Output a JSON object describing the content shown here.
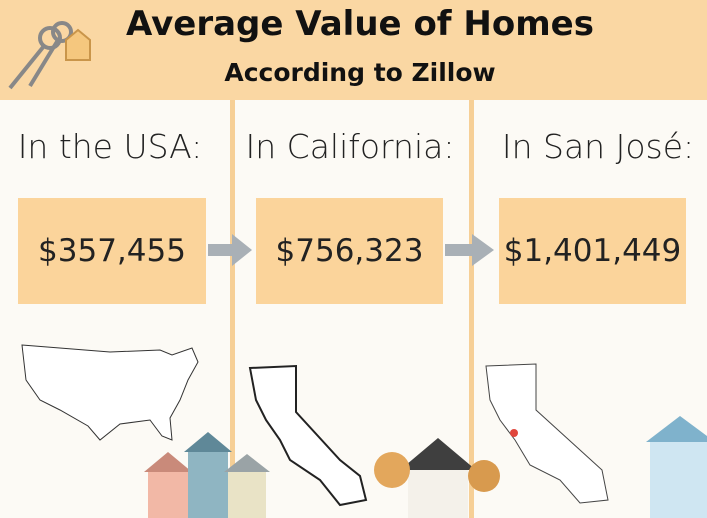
{
  "header": {
    "title": "Average Value of Homes",
    "subtitle": "According to Zillow"
  },
  "columns": [
    {
      "heading": "In the USA:",
      "value": "$357,455"
    },
    {
      "heading": "In California:",
      "value": "$756,323"
    },
    {
      "heading": "In San José:",
      "value": "$1,401,449"
    }
  ]
}
